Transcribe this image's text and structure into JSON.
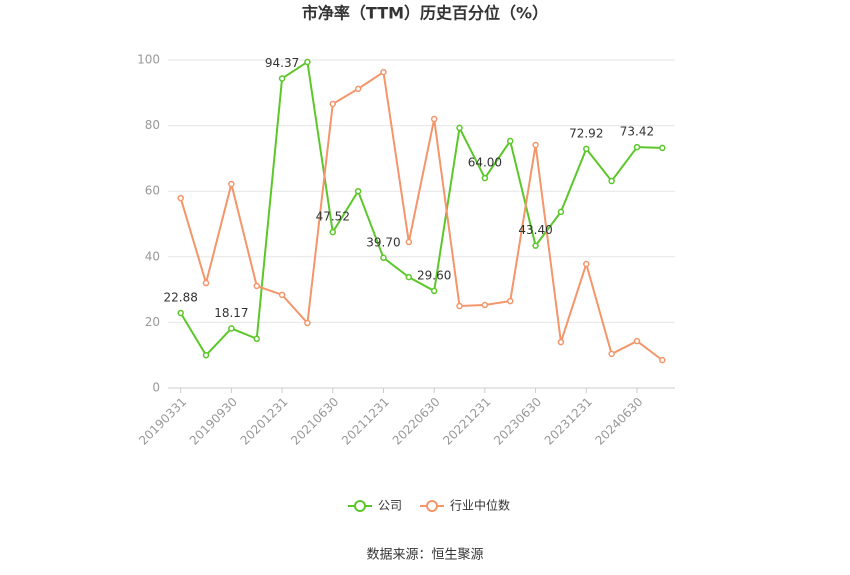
{
  "chart_data": {
    "type": "line",
    "title": "市净率（TTM）历史百分位（%）",
    "categories": [
      "20190331",
      null,
      "20190930",
      null,
      "20201231",
      null,
      "20210630",
      null,
      "20211231",
      null,
      "20220630",
      null,
      "20221231",
      null,
      "20230630",
      null,
      "20231231",
      null,
      "20240630",
      null
    ],
    "series": [
      {
        "name": "公司",
        "color": "#5cc72a",
        "values": [
          22.88,
          10,
          18.17,
          15,
          94.37,
          99.4,
          47.52,
          60,
          39.7,
          33.8,
          29.6,
          79.3,
          64.0,
          75.3,
          43.4,
          53.7,
          72.92,
          63.1,
          73.42,
          73.2
        ],
        "value_labels": [
          "22.88",
          null,
          "18.17",
          null,
          "94.37",
          null,
          "47.52",
          null,
          "39.70",
          null,
          "29.60",
          null,
          "64.00",
          null,
          "43.40",
          null,
          "72.92",
          null,
          "73.42",
          null
        ]
      },
      {
        "name": "行业中位数",
        "color": "#f4956a",
        "values": [
          57.9,
          32,
          62.2,
          31.1,
          28.4,
          19.8,
          86.6,
          91.2,
          96.3,
          44.5,
          82,
          25,
          25.3,
          26.5,
          74.1,
          14,
          37.8,
          10.4,
          14.3,
          8.5
        ]
      }
    ],
    "ylim": [
      0,
      100
    ],
    "yticks": [
      0,
      20,
      40,
      60,
      80,
      100
    ],
    "grid": true,
    "legend": "bottom",
    "source": "数据来源：恒生聚源"
  }
}
